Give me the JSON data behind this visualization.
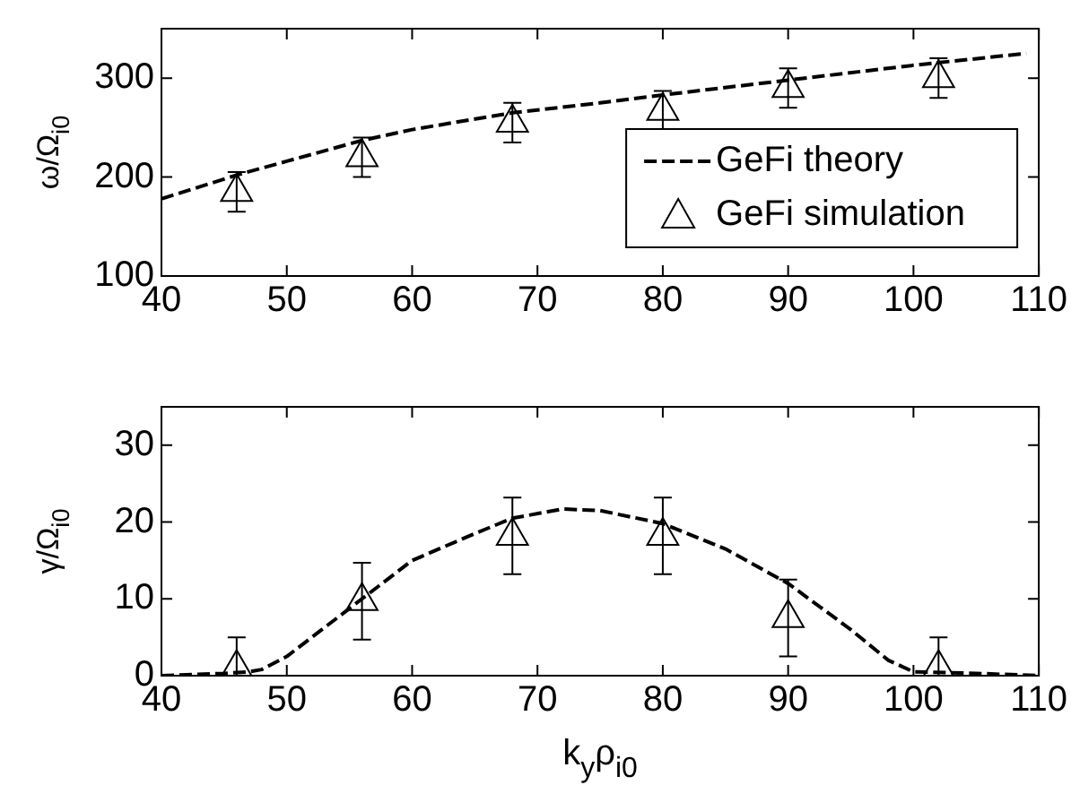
{
  "chart_data": [
    {
      "type": "scatter",
      "ylabel": "ω/Ω$_{i0}$",
      "xlim": [
        40,
        110
      ],
      "xticks": [
        40,
        50,
        60,
        70,
        80,
        90,
        100,
        110
      ],
      "ylim": [
        100,
        350
      ],
      "yticks": [
        100,
        200,
        300
      ],
      "grid": false,
      "legend": "bottom right",
      "series": [
        {
          "name": "GeFi theory",
          "type": "line",
          "color": "#000000",
          "line_style": "dashed",
          "marker": "none",
          "x": [
            40,
            46,
            50,
            56,
            60,
            68,
            75,
            80,
            90,
            100,
            109
          ],
          "values": [
            178,
            202,
            216,
            237,
            248,
            265,
            275,
            283,
            298,
            313,
            325
          ]
        },
        {
          "name": "GeFi simulation",
          "color": "#000000",
          "marker": "triangle",
          "x": [
            46,
            56,
            68,
            80,
            90,
            102
          ],
          "values": [
            185,
            220,
            255,
            267,
            290,
            300
          ],
          "errors": [
            20,
            20,
            20,
            20,
            20,
            20
          ]
        }
      ]
    },
    {
      "type": "scatter",
      "xlabel": "k$_{y}$ρ$_{i0}$",
      "ylabel": "γ/Ω$_{i0}$",
      "xlim": [
        40,
        110
      ],
      "xticks": [
        40,
        50,
        60,
        70,
        80,
        90,
        100,
        110
      ],
      "ylim": [
        0,
        35
      ],
      "yticks": [
        0,
        10,
        20,
        30
      ],
      "grid": false,
      "series": [
        {
          "type": "line",
          "color": "#000000",
          "line_style": "dashed",
          "marker": "none",
          "x": [
            40,
            45,
            47,
            48,
            50,
            56,
            60,
            65,
            68,
            72,
            75,
            80,
            85,
            90,
            95,
            98,
            100,
            105,
            110
          ],
          "values": [
            0,
            0.3,
            0.5,
            0.8,
            2.5,
            10,
            15,
            18.5,
            20.5,
            21.7,
            21.5,
            19.8,
            16.5,
            12,
            6,
            2,
            0.5,
            0.3,
            0
          ]
        },
        {
          "color": "#000000",
          "marker": "triangle",
          "x": [
            46,
            56,
            68,
            80,
            90,
            102
          ],
          "values": [
            1,
            9.7,
            18.2,
            18.2,
            7.5,
            1
          ],
          "errors": [
            [
              0,
              5
            ],
            5,
            5,
            5,
            5,
            [
              0,
              5
            ]
          ]
        }
      ]
    }
  ]
}
